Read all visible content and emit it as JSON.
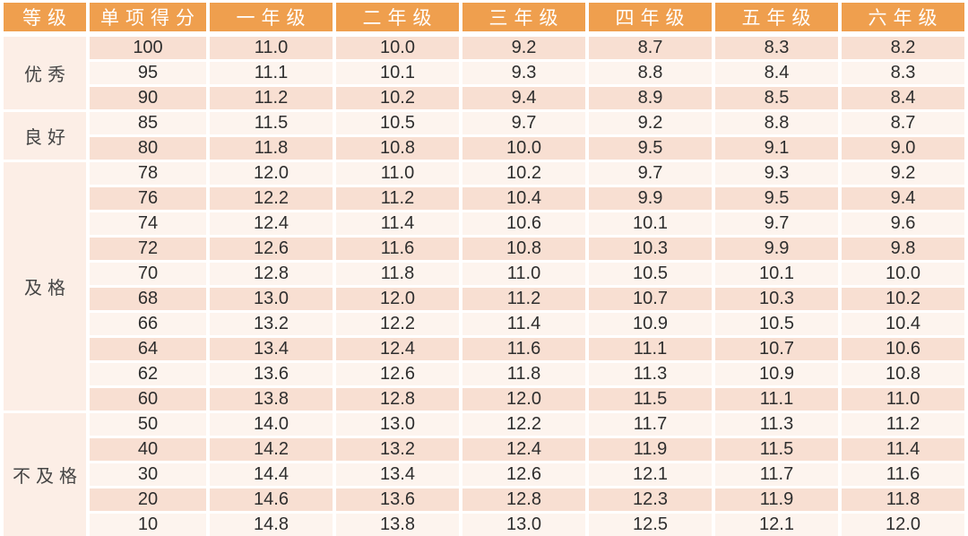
{
  "chart_data": {
    "type": "table",
    "columns": [
      "等级",
      "单项得分",
      "一年级",
      "二年级",
      "三年级",
      "四年级",
      "五年级",
      "六年级"
    ],
    "groups": [
      {
        "category": "优秀",
        "rows": [
          {
            "score": "100",
            "values": [
              "11.0",
              "10.0",
              "9.2",
              "8.7",
              "8.3",
              "8.2"
            ]
          },
          {
            "score": "95",
            "values": [
              "11.1",
              "10.1",
              "9.3",
              "8.8",
              "8.4",
              "8.3"
            ]
          },
          {
            "score": "90",
            "values": [
              "11.2",
              "10.2",
              "9.4",
              "8.9",
              "8.5",
              "8.4"
            ]
          }
        ]
      },
      {
        "category": "良好",
        "rows": [
          {
            "score": "85",
            "values": [
              "11.5",
              "10.5",
              "9.7",
              "9.2",
              "8.8",
              "8.7"
            ]
          },
          {
            "score": "80",
            "values": [
              "11.8",
              "10.8",
              "10.0",
              "9.5",
              "9.1",
              "9.0"
            ]
          }
        ]
      },
      {
        "category": "及格",
        "rows": [
          {
            "score": "78",
            "values": [
              "12.0",
              "11.0",
              "10.2",
              "9.7",
              "9.3",
              "9.2"
            ]
          },
          {
            "score": "76",
            "values": [
              "12.2",
              "11.2",
              "10.4",
              "9.9",
              "9.5",
              "9.4"
            ]
          },
          {
            "score": "74",
            "values": [
              "12.4",
              "11.4",
              "10.6",
              "10.1",
              "9.7",
              "9.6"
            ]
          },
          {
            "score": "72",
            "values": [
              "12.6",
              "11.6",
              "10.8",
              "10.3",
              "9.9",
              "9.8"
            ]
          },
          {
            "score": "70",
            "values": [
              "12.8",
              "11.8",
              "11.0",
              "10.5",
              "10.1",
              "10.0"
            ]
          },
          {
            "score": "68",
            "values": [
              "13.0",
              "12.0",
              "11.2",
              "10.7",
              "10.3",
              "10.2"
            ]
          },
          {
            "score": "66",
            "values": [
              "13.2",
              "12.2",
              "11.4",
              "10.9",
              "10.5",
              "10.4"
            ]
          },
          {
            "score": "64",
            "values": [
              "13.4",
              "12.4",
              "11.6",
              "11.1",
              "10.7",
              "10.6"
            ]
          },
          {
            "score": "62",
            "values": [
              "13.6",
              "12.6",
              "11.8",
              "11.3",
              "10.9",
              "10.8"
            ]
          },
          {
            "score": "60",
            "values": [
              "13.8",
              "12.8",
              "12.0",
              "11.5",
              "11.1",
              "11.0"
            ]
          }
        ]
      },
      {
        "category": "不及格",
        "rows": [
          {
            "score": "50",
            "values": [
              "14.0",
              "13.0",
              "12.2",
              "11.7",
              "11.3",
              "11.2"
            ]
          },
          {
            "score": "40",
            "values": [
              "14.2",
              "13.2",
              "12.4",
              "11.9",
              "11.5",
              "11.4"
            ]
          },
          {
            "score": "30",
            "values": [
              "14.4",
              "13.4",
              "12.6",
              "12.1",
              "11.7",
              "11.6"
            ]
          },
          {
            "score": "20",
            "values": [
              "14.6",
              "13.6",
              "12.8",
              "12.3",
              "11.9",
              "11.8"
            ]
          },
          {
            "score": "10",
            "values": [
              "14.8",
              "13.8",
              "13.0",
              "12.5",
              "12.1",
              "12.0"
            ]
          }
        ]
      }
    ],
    "layout": {
      "row_striping": [
        "peach",
        "light"
      ],
      "first_data_row_style": "peach",
      "category_column_merged": true
    }
  },
  "colors": {
    "header_bg": "#EF9F4E",
    "header_text": "#FFFFFF",
    "row_peach": "#F8DFD2",
    "row_light": "#FDF4EE",
    "category_bg": "#FCEEE6",
    "num_text": "#2E2E2E",
    "cat_text": "#454545",
    "gap": "#FFFFFF"
  }
}
